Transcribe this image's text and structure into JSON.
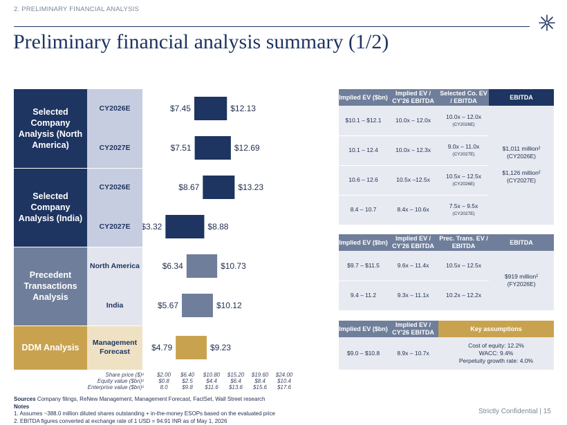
{
  "header": {
    "section": "2. PRELIMINARY FINANCIAL ANALYSIS",
    "title": "Preliminary financial analysis summary (1/2)"
  },
  "colors": {
    "navy": "#1e3461",
    "slate": "#6f7e9a",
    "gold": "#c9a24f",
    "light_sub": "#c7cde0"
  },
  "methods": [
    {
      "label": "Selected Company Analysis (North America)",
      "rows": [
        "CY2026E",
        "CY2027E"
      ]
    },
    {
      "label": "Selected Company Analysis (India)",
      "rows": [
        "CY2026E",
        "CY2027E"
      ]
    },
    {
      "label": "Precedent Transactions Analysis",
      "rows": [
        "North America",
        "India"
      ]
    },
    {
      "label": "DDM Analysis",
      "rows": [
        "Management Forecast"
      ]
    }
  ],
  "chart_data": {
    "type": "floating_bar",
    "x_axis": {
      "share_price_label": "Share price ($)¹",
      "equity_value_label": "Equity value ($bn)¹",
      "enterprise_value_label": "Enterprise value ($bn)¹",
      "share_price_ticks": [
        "$2.00",
        "$6.40",
        "$10.80",
        "$15.20",
        "$19.60",
        "$24.00"
      ],
      "equity_value_ticks": [
        "$0.8",
        "$2.5",
        "$4.4",
        "$6.4",
        "$8.4",
        "$10.4"
      ],
      "enterprise_value_ticks": [
        "8.0",
        "$9.8",
        "$11.6",
        "$13.6",
        "$15.6",
        "$17.6"
      ],
      "range": [
        2.0,
        24.0
      ]
    },
    "bars": [
      {
        "group": "Selected Company Analysis (North America)",
        "row": "CY2026E",
        "low": 7.45,
        "high": 12.13,
        "low_label": "$7.45",
        "high_label": "$12.13",
        "color": "#1e3461"
      },
      {
        "group": "Selected Company Analysis (North America)",
        "row": "CY2027E",
        "low": 7.51,
        "high": 12.69,
        "low_label": "$7.51",
        "high_label": "$12.69",
        "color": "#1e3461"
      },
      {
        "group": "Selected Company Analysis (India)",
        "row": "CY2026E",
        "low": 8.67,
        "high": 13.23,
        "low_label": "$8.67",
        "high_label": "$13.23",
        "color": "#1e3461"
      },
      {
        "group": "Selected Company Analysis (India)",
        "row": "CY2027E",
        "low": 3.32,
        "high": 8.88,
        "low_label": "$3.32",
        "high_label": "$8.88",
        "color": "#1e3461"
      },
      {
        "group": "Precedent Transactions Analysis",
        "row": "North America",
        "low": 6.34,
        "high": 10.73,
        "low_label": "$6.34",
        "high_label": "$10.73",
        "color": "#6f7e9a"
      },
      {
        "group": "Precedent Transactions Analysis",
        "row": "India",
        "low": 5.67,
        "high": 10.12,
        "low_label": "$5.67",
        "high_label": "$10.12",
        "color": "#6f7e9a"
      },
      {
        "group": "DDM Analysis",
        "row": "Management Forecast",
        "low": 4.79,
        "high": 9.23,
        "low_label": "$4.79",
        "high_label": "$9.23",
        "color": "#c9a24f"
      }
    ]
  },
  "table1": {
    "headers": [
      "Implied EV ($bn)",
      "Implied EV / CY'26 EBITDA",
      "Selected Co. EV / EBITDA",
      "EBITDA"
    ],
    "rows": [
      {
        "ev": "$10.1 – $12.1",
        "mult": "10.0x – 12.0x",
        "sel": "10.0x – 12.0x",
        "sel_sub": "(CY2026E)"
      },
      {
        "ev": "10.1 – 12.4",
        "mult": "10.0x – 12.3x",
        "sel": "9.0x – 11.0x",
        "sel_sub": "(CY2027E)"
      },
      {
        "ev": "10.6 – 12.6",
        "mult": "10.5x –12.5x",
        "sel": "10.5x – 12.5x",
        "sel_sub": "(CY2026E)"
      },
      {
        "ev": "8.4 – 10.7",
        "mult": "8.4x – 10.6x",
        "sel": "7.5x – 9.5x",
        "sel_sub": "(CY2027E)"
      }
    ],
    "ebitda_1": "$1,011 million²",
    "ebitda_1_period": "(CY2026E)",
    "ebitda_2": "$1,126 million²",
    "ebitda_2_period": "(CY2027E)"
  },
  "table2": {
    "headers": [
      "Implied EV ($bn)",
      "Implied EV / CY'26 EBITDA",
      "Prec. Trans. EV / EBITDA",
      "EBITDA"
    ],
    "rows": [
      {
        "ev": "$9.7 – $11.5",
        "mult": "9.6x – 11.4x",
        "prec": "10.5x – 12.5x"
      },
      {
        "ev": "9.4 – 11.2",
        "mult": "9.3x – 11.1x",
        "prec": "10.2x – 12.2x"
      }
    ],
    "ebitda": "$919 million²",
    "ebitda_period": "(FY2026E)"
  },
  "table3": {
    "headers": [
      "Implied EV ($bn)",
      "Implied EV / CY'26 EBITDA",
      "Key assumptions"
    ],
    "ev": "$9.0 – $10.8",
    "mult": "8.9x – 10.7x",
    "assumptions": [
      "Cost of equity: 12.2%",
      "WACC: 9.4%",
      "Perpetuity growth rate: 4.0%"
    ]
  },
  "sources": {
    "label": "Sources",
    "text": "Company filings, ReNew Management, Management Forecast, FactSet, Wall Street research",
    "notes_label": "Notes",
    "note1": "1.    Assumes ~388.0 million diluted shares outstanding + in-the-money ESOPs based on the evaluated price",
    "note2": "2.    EBITDA figures converted at exchange rate of 1 USD = 94.91 INR as of May 1, 2026"
  },
  "footer": {
    "text": "Strictly Confidential  |  15"
  }
}
